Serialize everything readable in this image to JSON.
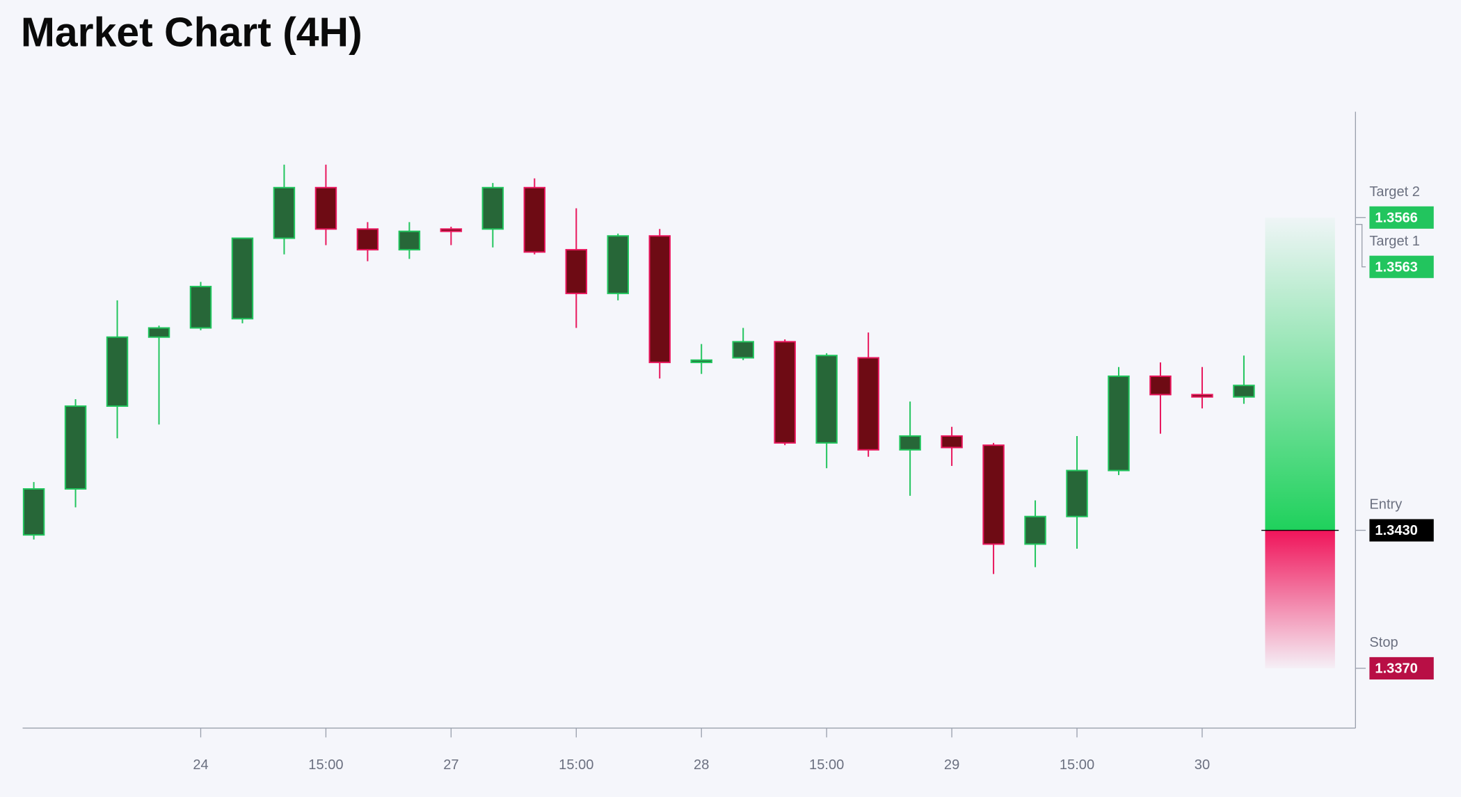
{
  "chart_data": {
    "type": "candlestick",
    "title": "Market Chart (4H)",
    "categories": [
      null,
      null,
      null,
      null,
      "24",
      null,
      null,
      "15:00",
      null,
      null,
      "27",
      null,
      null,
      "15:00",
      null,
      null,
      "28",
      null,
      null,
      "15:00",
      null,
      null,
      "29",
      null,
      null,
      "15:00",
      null,
      null,
      "30",
      null
    ],
    "open": [
      1.3428,
      1.3448,
      1.3484,
      1.3514,
      1.3518,
      1.3522,
      1.3557,
      1.3579,
      1.3561,
      1.3552,
      1.3561,
      1.3561,
      1.3579,
      1.3552,
      1.3533,
      1.3558,
      1.3503,
      1.3505,
      1.3512,
      1.3468,
      1.3505,
      1.3465,
      1.3471,
      1.3467,
      1.3424,
      1.3436,
      1.3456,
      1.3497,
      1.3489,
      1.3488
    ],
    "high": [
      1.3451,
      1.3487,
      1.353,
      1.3519,
      1.3538,
      1.3557,
      1.3589,
      1.3589,
      1.3564,
      1.3564,
      1.3562,
      1.3581,
      1.3583,
      1.357,
      1.3559,
      1.3561,
      1.3511,
      1.3518,
      1.3513,
      1.3507,
      1.3516,
      1.3486,
      1.3475,
      1.3468,
      1.3443,
      1.3471,
      1.3501,
      1.3503,
      1.3501,
      1.3506
    ],
    "low": [
      1.3426,
      1.344,
      1.347,
      1.3476,
      1.3517,
      1.352,
      1.355,
      1.3554,
      1.3547,
      1.3548,
      1.3554,
      1.3553,
      1.355,
      1.3518,
      1.353,
      1.3496,
      1.3498,
      1.3504,
      1.3467,
      1.3457,
      1.3462,
      1.3445,
      1.3458,
      1.3411,
      1.3414,
      1.3422,
      1.3454,
      1.3472,
      1.3483,
      1.3485
    ],
    "close": [
      1.3448,
      1.3484,
      1.3514,
      1.3518,
      1.3536,
      1.3557,
      1.3579,
      1.3561,
      1.3552,
      1.356,
      1.356,
      1.3579,
      1.3551,
      1.3533,
      1.3558,
      1.3503,
      1.3504,
      1.3512,
      1.3468,
      1.3506,
      1.3465,
      1.3471,
      1.3466,
      1.3424,
      1.3436,
      1.3456,
      1.3497,
      1.3489,
      1.3488,
      1.3493
    ],
    "up_color": "#276738",
    "up_border": "#22c55e",
    "down_color": "#6e0b14",
    "down_border": "#e8175d",
    "ylim": [
      1.3344,
      1.3612
    ],
    "levels": [
      {
        "name": "Target 2",
        "value": 1.3566,
        "value_label": "1.3566",
        "color": "#22c55e"
      },
      {
        "name": "Target 1",
        "value": 1.3563,
        "value_label": "1.3563",
        "color": "#22c55e"
      },
      {
        "name": "Entry",
        "value": 1.343,
        "value_label": "1.3430",
        "color": "#000000"
      },
      {
        "name": "Stop",
        "value": 1.337,
        "value_label": "1.3370",
        "color": "#b80f45"
      }
    ]
  }
}
